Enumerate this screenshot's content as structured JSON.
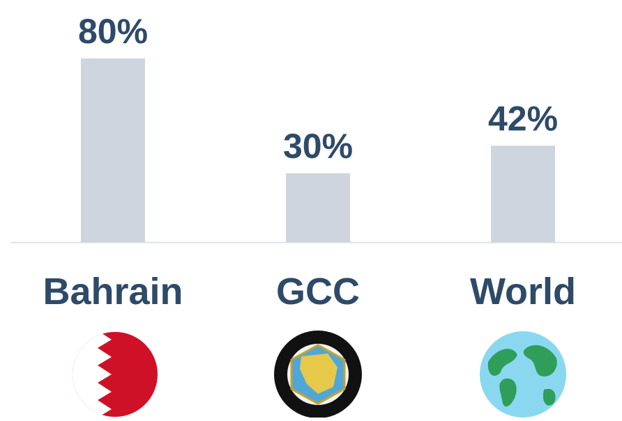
{
  "chart_data": {
    "type": "bar",
    "categories": [
      "Bahrain",
      "GCC",
      "World"
    ],
    "values": [
      80,
      30,
      42
    ],
    "value_labels": [
      "80%",
      "30%",
      "42%"
    ],
    "color": "#cfd5de"
  }
}
